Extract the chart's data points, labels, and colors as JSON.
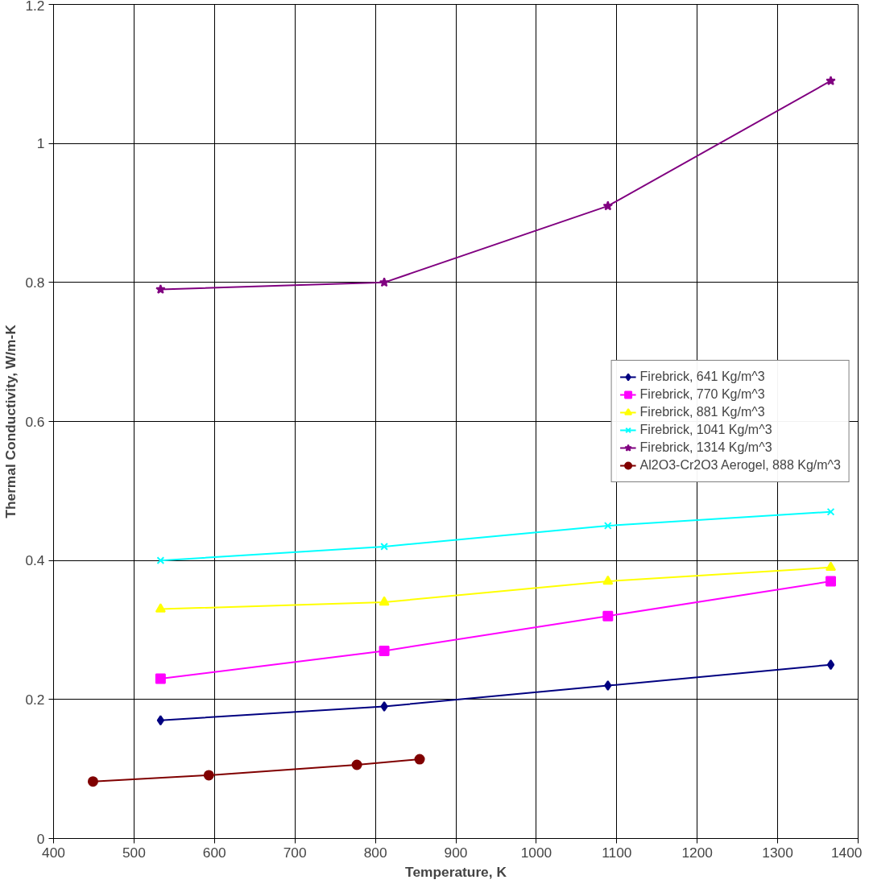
{
  "chart_data": {
    "type": "line",
    "xlabel": "Temperature, K",
    "ylabel": "Thermal Conductivity, W/m-K",
    "xlim": [
      400,
      1400
    ],
    "xticks": [
      400,
      500,
      600,
      700,
      800,
      900,
      1000,
      1100,
      1200,
      1300,
      1400
    ],
    "ylim": [
      0,
      1.2
    ],
    "yticks": [
      0,
      0.2,
      0.4,
      0.6,
      0.8,
      1,
      1.2
    ],
    "grid": true,
    "legend": "right",
    "line_style": "solid",
    "series": [
      {
        "name": "Firebrick, 641 Kg/m^3",
        "color": "#000080",
        "marker": "diamond",
        "x": [
          533,
          811,
          1089,
          1366
        ],
        "values": [
          0.17,
          0.19,
          0.22,
          0.25
        ]
      },
      {
        "name": "Firebrick, 770 Kg/m^3",
        "color": "#ff00ff",
        "marker": "square",
        "x": [
          533,
          811,
          1089,
          1366
        ],
        "values": [
          0.23,
          0.27,
          0.32,
          0.37
        ]
      },
      {
        "name": "Firebrick, 881 Kg/m^3",
        "color": "#ffff00",
        "marker": "triangle",
        "x": [
          533,
          811,
          1089,
          1366
        ],
        "values": [
          0.33,
          0.34,
          0.37,
          0.39
        ]
      },
      {
        "name": "Firebrick, 1041 Kg/m^3",
        "color": "#00ffff",
        "marker": "cross",
        "x": [
          533,
          811,
          1089,
          1366
        ],
        "values": [
          0.4,
          0.42,
          0.45,
          0.47
        ]
      },
      {
        "name": "Firebrick, 1314 Kg/m^3",
        "color": "#800080",
        "marker": "star",
        "x": [
          533,
          811,
          1089,
          1366
        ],
        "values": [
          0.79,
          0.8,
          0.91,
          1.09
        ]
      },
      {
        "name": "Al2O3-Cr2O3 Aerogel, 888 Kg/m^3",
        "color": "#800000",
        "marker": "circle",
        "x": [
          449,
          593,
          777,
          855
        ],
        "values": [
          0.082,
          0.091,
          0.106,
          0.114
        ]
      }
    ]
  }
}
